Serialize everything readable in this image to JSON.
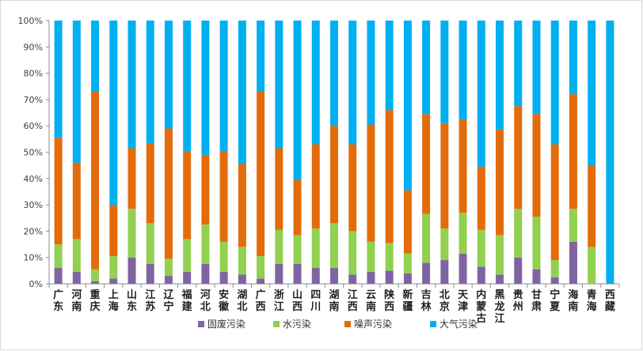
{
  "chart_data": {
    "type": "bar",
    "stacked": true,
    "percent": true,
    "categories": [
      "广东",
      "河南",
      "重庆",
      "上海",
      "山东",
      "江苏",
      "辽宁",
      "福建",
      "河北",
      "安徽",
      "湖北",
      "广西",
      "浙江",
      "山西",
      "四川",
      "湖南",
      "江西",
      "云南",
      "陕西",
      "新疆",
      "吉林",
      "北京",
      "天津",
      "内蒙古",
      "黑龙江",
      "贵州",
      "甘肃",
      "宁夏",
      "海南",
      "青海",
      "西藏"
    ],
    "series": [
      {
        "name": "固废污染",
        "color": "#8064a2",
        "values": [
          6,
          4.5,
          1,
          2,
          10,
          7.5,
          3,
          4.5,
          7.5,
          4.5,
          3.5,
          2,
          7.5,
          7.5,
          6,
          6,
          3.5,
          4.5,
          5,
          4,
          8,
          9,
          11.5,
          6.5,
          3.5,
          10,
          5.5,
          2.5,
          16,
          0,
          0
        ]
      },
      {
        "name": "水污染",
        "color": "#92d050",
        "values": [
          9,
          12.5,
          4.5,
          8.5,
          18.5,
          15.5,
          6.5,
          12.5,
          15,
          11.5,
          10.5,
          8.5,
          13,
          11,
          15,
          17,
          16.5,
          11.5,
          10.5,
          7.5,
          18.5,
          12,
          15.5,
          14,
          15,
          18.5,
          20,
          6.5,
          12.5,
          14,
          0
        ]
      },
      {
        "name": "噪声污染",
        "color": "#e36c0a",
        "values": [
          40.5,
          29,
          67.5,
          19.5,
          23,
          30.5,
          49.5,
          33.5,
          26.5,
          34.5,
          31.5,
          62.5,
          31,
          21,
          32,
          37,
          33,
          44.5,
          50.5,
          24,
          38,
          40,
          35.5,
          24,
          40,
          39,
          39,
          44,
          43.5,
          31,
          0
        ]
      },
      {
        "name": "大气污染",
        "color": "#00b0f0",
        "values": [
          44.5,
          54,
          27,
          70,
          48.5,
          46.5,
          41,
          49.5,
          51,
          49.5,
          54.5,
          27,
          48.5,
          60.5,
          47,
          40,
          47,
          39.5,
          34,
          64.5,
          35.5,
          39,
          37.5,
          55.5,
          41.5,
          32.5,
          35.5,
          47,
          28,
          55,
          100
        ]
      }
    ],
    "ylim": [
      0,
      100
    ],
    "yticks": [
      "0%",
      "10%",
      "20%",
      "30%",
      "40%",
      "50%",
      "60%",
      "70%",
      "80%",
      "90%",
      "100%"
    ],
    "legend_position": "bottom",
    "grid": false
  }
}
